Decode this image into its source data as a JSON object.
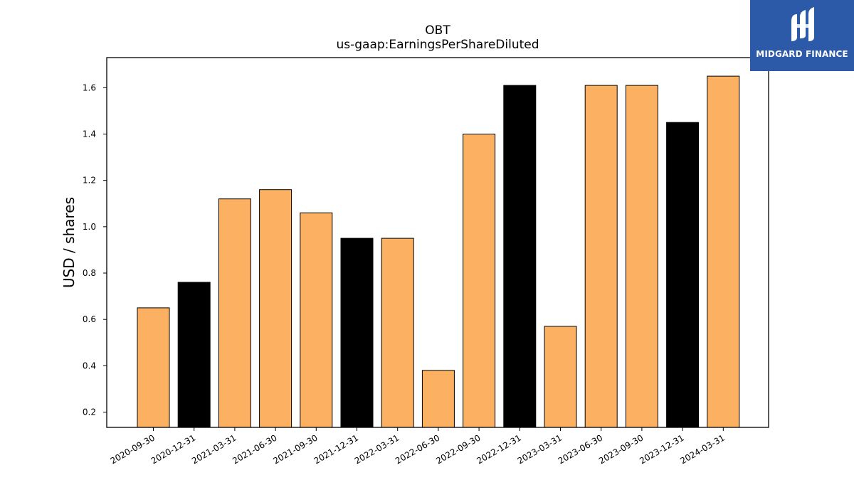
{
  "chart_data": {
    "type": "bar",
    "title": "OBT",
    "subtitle": "us-gaap:EarningsPerShareDiluted",
    "xlabel": "",
    "ylabel": "USD / shares",
    "categories": [
      "2020-09-30",
      "2020-12-31",
      "2021-03-31",
      "2021-06-30",
      "2021-09-30",
      "2021-12-31",
      "2022-03-31",
      "2022-06-30",
      "2022-09-30",
      "2022-12-31",
      "2023-03-31",
      "2023-06-30",
      "2023-09-30",
      "2023-12-31",
      "2024-03-31"
    ],
    "values": [
      0.65,
      0.76,
      1.12,
      1.16,
      1.06,
      0.95,
      0.95,
      0.38,
      1.4,
      1.61,
      0.57,
      1.61,
      1.61,
      1.45,
      1.65
    ],
    "bar_colors": [
      "#fbb161",
      "#000000",
      "#fbb161",
      "#fbb161",
      "#fbb161",
      "#000000",
      "#fbb161",
      "#fbb161",
      "#fbb161",
      "#000000",
      "#fbb161",
      "#fbb161",
      "#fbb161",
      "#000000",
      "#fbb161"
    ],
    "yticks": [
      0.2,
      0.4,
      0.6,
      0.8,
      1.0,
      1.2,
      1.4,
      1.6
    ],
    "ylim": [
      0.134,
      1.73
    ],
    "grid": false
  },
  "logo": {
    "text": "MIDGARD FINANCE",
    "color": "#2c5aa8"
  }
}
